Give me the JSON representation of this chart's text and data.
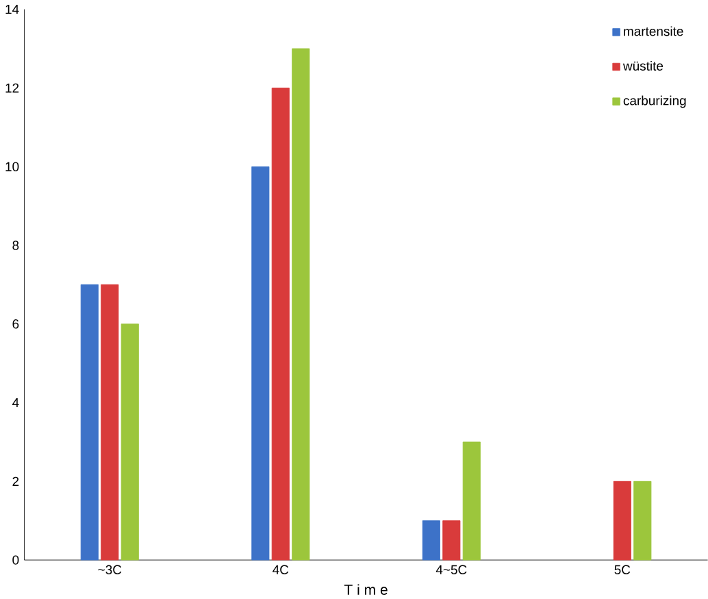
{
  "chart_data": {
    "type": "bar",
    "xlabel": "T i m e",
    "categories": [
      "~3C",
      "4C",
      "4~5C",
      "5C"
    ],
    "series": [
      {
        "name": "martensite",
        "color": "#3d72c8",
        "values": [
          7,
          10,
          1,
          null
        ]
      },
      {
        "name": "wüstite",
        "color": "#d93b3b",
        "values": [
          7,
          12,
          1,
          2
        ]
      },
      {
        "name": "carburizing",
        "color": "#9cc63c",
        "values": [
          6,
          13,
          3,
          2
        ]
      }
    ],
    "ylim": [
      0,
      14
    ],
    "yticks": [
      0,
      2,
      4,
      6,
      8,
      10,
      12,
      14
    ],
    "grid": false,
    "legend": "top right"
  }
}
